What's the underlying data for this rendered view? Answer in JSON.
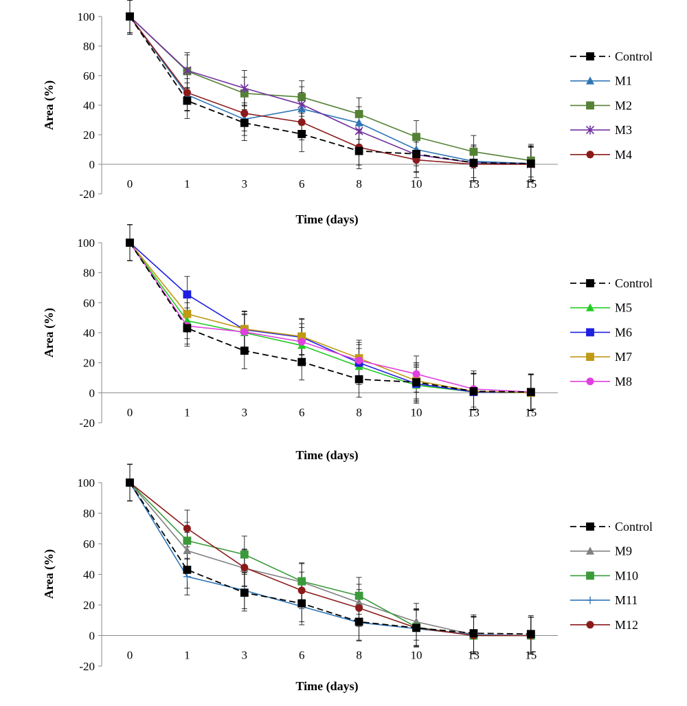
{
  "chart_data": [
    {
      "type": "line",
      "x": [
        "0",
        "1",
        "3",
        "6",
        "8",
        "10",
        "13",
        "15"
      ],
      "xlabel": "Time (days)",
      "ylabel": "Area (%)",
      "ylim": [
        -20,
        100
      ],
      "yticks": [
        100,
        80,
        60,
        40,
        20,
        0,
        -20
      ],
      "grid": false,
      "legend_position": "right",
      "series": [
        {
          "name": "Control",
          "color": "#000000",
          "marker": "square",
          "dash": true,
          "values": [
            100,
            43,
            28,
            20.5,
            9,
            7,
            1,
            0.5
          ],
          "errors": [
            12,
            12,
            12,
            12,
            12,
            12,
            12,
            12
          ]
        },
        {
          "name": "M1",
          "color": "#2e75b6",
          "marker": "triangle",
          "dash": false,
          "values": [
            100,
            47,
            30.5,
            37.5,
            28,
            10,
            2,
            0.5
          ],
          "errors": [
            11,
            11,
            11,
            11,
            11,
            11,
            11,
            11
          ]
        },
        {
          "name": "M2",
          "color": "#548235",
          "marker": "square",
          "dash": false,
          "values": [
            100,
            63,
            48,
            45.5,
            34,
            18.5,
            8.5,
            2.5
          ],
          "errors": [
            11,
            11,
            11,
            11,
            11,
            11,
            11,
            11
          ]
        },
        {
          "name": "M3",
          "color": "#7030a0",
          "marker": "star",
          "dash": false,
          "values": [
            100,
            63.5,
            51.5,
            40.5,
            22.5,
            6.5,
            1,
            0
          ],
          "errors": [
            12,
            12,
            12,
            12,
            12,
            12,
            12,
            12
          ]
        },
        {
          "name": "M4",
          "color": "#8b1a1a",
          "marker": "circle",
          "dash": false,
          "values": [
            100,
            48.5,
            34.5,
            28.5,
            11.5,
            3,
            0,
            0
          ],
          "errors": [
            12,
            12,
            12,
            12,
            12,
            12,
            12,
            12
          ]
        }
      ]
    },
    {
      "type": "line",
      "x": [
        "0",
        "1",
        "3",
        "6",
        "8",
        "10",
        "13",
        "15"
      ],
      "xlabel": "Time (days)",
      "ylabel": "Area (%)",
      "ylim": [
        -20,
        100
      ],
      "yticks": [
        100,
        80,
        60,
        40,
        20,
        0,
        -20
      ],
      "grid": false,
      "legend_position": "right",
      "series": [
        {
          "name": "Control",
          "color": "#000000",
          "marker": "square",
          "dash": true,
          "values": [
            100,
            43,
            28,
            20.5,
            9,
            7,
            1,
            0.5
          ],
          "errors": [
            12,
            12,
            12,
            12,
            12,
            12,
            12,
            12
          ]
        },
        {
          "name": "M5",
          "color": "#22cc22",
          "marker": "triangle",
          "dash": false,
          "values": [
            100,
            48,
            40,
            31.5,
            17.5,
            5,
            0.5,
            0
          ],
          "errors": [
            12,
            12,
            12,
            12,
            12,
            12,
            12,
            12
          ]
        },
        {
          "name": "M6",
          "color": "#1f1fe0",
          "marker": "square",
          "dash": false,
          "values": [
            100,
            65.5,
            42,
            37,
            20,
            6,
            0.5,
            0
          ],
          "errors": [
            12,
            12,
            12,
            12,
            12,
            12,
            12,
            12
          ]
        },
        {
          "name": "M7",
          "color": "#c09a14",
          "marker": "square",
          "dash": false,
          "values": [
            100,
            52.5,
            42.5,
            37.5,
            23,
            8,
            1,
            0
          ],
          "errors": [
            12,
            12,
            12,
            12,
            12,
            12,
            12,
            12
          ]
        },
        {
          "name": "M8",
          "color": "#e040e0",
          "marker": "circle",
          "dash": false,
          "values": [
            100,
            44.5,
            40.5,
            34,
            21.5,
            12.5,
            2.5,
            0.5
          ],
          "errors": [
            12,
            12,
            12,
            12,
            12,
            12,
            12,
            12
          ]
        }
      ]
    },
    {
      "type": "line",
      "x": [
        "0",
        "1",
        "3",
        "6",
        "8",
        "10",
        "13",
        "15"
      ],
      "xlabel": "Time (days)",
      "ylabel": "Area (%)",
      "ylim": [
        -20,
        100
      ],
      "yticks": [
        100,
        80,
        60,
        40,
        20,
        0,
        -20
      ],
      "grid": false,
      "legend_position": "right",
      "series": [
        {
          "name": "Control",
          "color": "#000000",
          "marker": "square",
          "dash": true,
          "values": [
            100,
            43,
            28,
            21,
            9,
            5,
            1.5,
            1
          ],
          "errors": [
            12,
            12,
            12,
            12,
            12,
            12,
            12,
            12
          ]
        },
        {
          "name": "M9",
          "color": "#808080",
          "marker": "triangle",
          "dash": false,
          "values": [
            100,
            55.5,
            44,
            35,
            21.5,
            9,
            0.5,
            0
          ],
          "errors": [
            12,
            12,
            12,
            12,
            12,
            12,
            12,
            12
          ]
        },
        {
          "name": "M10",
          "color": "#3a9a3a",
          "marker": "square",
          "dash": false,
          "values": [
            100,
            62,
            53,
            35.5,
            26,
            5.5,
            0,
            0
          ],
          "errors": [
            12,
            12,
            12,
            12,
            12,
            12,
            12,
            12
          ]
        },
        {
          "name": "M11",
          "color": "#2e75b6",
          "marker": "plus",
          "dash": false,
          "values": [
            100,
            38.5,
            29.5,
            19,
            8.5,
            4.5,
            0.5,
            0
          ],
          "errors": [
            12,
            12,
            12,
            12,
            12,
            12,
            12,
            12
          ]
        },
        {
          "name": "M12",
          "color": "#8b1a1a",
          "marker": "circle",
          "dash": false,
          "values": [
            100,
            70,
            44.5,
            29.5,
            18,
            5,
            0,
            0
          ],
          "errors": [
            12,
            12,
            12,
            12,
            12,
            12,
            12,
            12
          ]
        }
      ]
    }
  ]
}
